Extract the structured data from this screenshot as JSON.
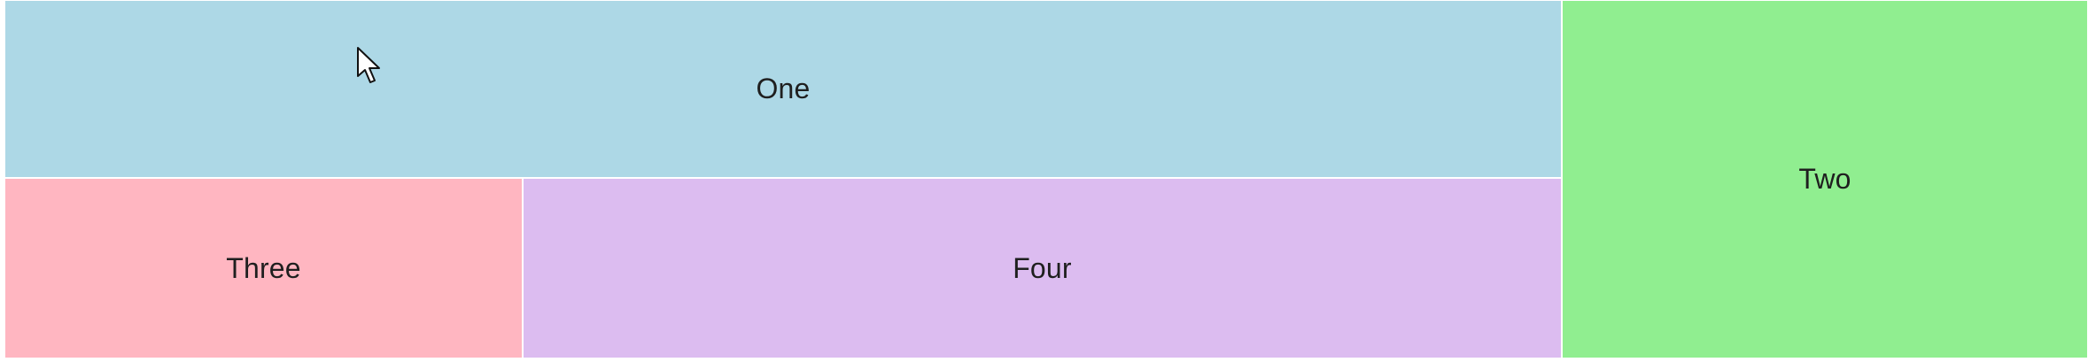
{
  "tiles": {
    "one": {
      "label": "One",
      "color": "#add8e6"
    },
    "two": {
      "label": "Two",
      "color": "#90ee90"
    },
    "three": {
      "label": "Three",
      "color": "#ffb6c1"
    },
    "four": {
      "label": "Four",
      "color": "#dcbcf0"
    }
  },
  "cursor": {
    "icon": "arrow-pointer-icon"
  }
}
